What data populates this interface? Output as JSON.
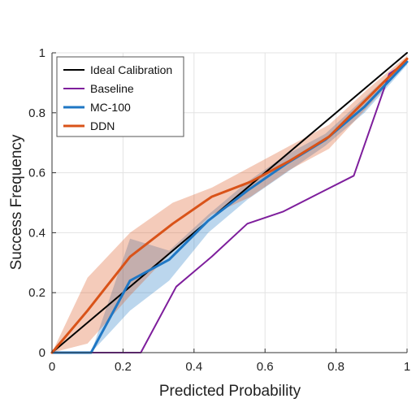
{
  "chart_data": {
    "type": "line",
    "xlabel": "Predicted Probability",
    "ylabel": "Success Frequency",
    "xlim": [
      0,
      1
    ],
    "ylim": [
      0,
      1
    ],
    "xticks": [
      "0",
      "0.2",
      "0.4",
      "0.6",
      "0.8",
      "1"
    ],
    "yticks": [
      "0",
      "0.2",
      "0.4",
      "0.6",
      "0.8",
      "1"
    ],
    "grid": true,
    "legend_position": "top-left",
    "series": [
      {
        "name": "Ideal Calibration",
        "color": "#000000",
        "x": [
          0,
          1
        ],
        "y": [
          0,
          1
        ]
      },
      {
        "name": "Baseline",
        "color": "#7e1e9c",
        "x": [
          0,
          0.25,
          0.35,
          0.45,
          0.55,
          0.65,
          0.75,
          0.85,
          0.95,
          1.0
        ],
        "y": [
          0,
          0,
          0.22,
          0.32,
          0.43,
          0.47,
          0.53,
          0.59,
          0.93,
          0.97
        ]
      },
      {
        "name": "MC-100",
        "color": "#1f77c4",
        "x": [
          0,
          0.11,
          0.22,
          0.33,
          0.44,
          0.55,
          0.66,
          0.77,
          0.88,
          1.0
        ],
        "y": [
          0,
          0,
          0.24,
          0.31,
          0.44,
          0.54,
          0.63,
          0.71,
          0.82,
          0.97
        ],
        "lower": [
          0,
          0,
          0.14,
          0.24,
          0.4,
          0.51,
          0.6,
          0.69,
          0.8,
          0.96
        ],
        "upper": [
          0,
          0,
          0.38,
          0.34,
          0.46,
          0.57,
          0.66,
          0.73,
          0.85,
          0.98
        ]
      },
      {
        "name": "DDN",
        "color": "#d95319",
        "x": [
          0,
          0.1,
          0.22,
          0.34,
          0.45,
          0.56,
          0.67,
          0.78,
          0.89,
          1.0
        ],
        "y": [
          0,
          0.14,
          0.32,
          0.43,
          0.52,
          0.57,
          0.64,
          0.72,
          0.85,
          0.98
        ],
        "lower": [
          0,
          0.03,
          0.19,
          0.34,
          0.46,
          0.52,
          0.61,
          0.68,
          0.82,
          0.97
        ],
        "upper": [
          0,
          0.25,
          0.4,
          0.5,
          0.55,
          0.62,
          0.69,
          0.76,
          0.88,
          0.99
        ]
      }
    ]
  }
}
